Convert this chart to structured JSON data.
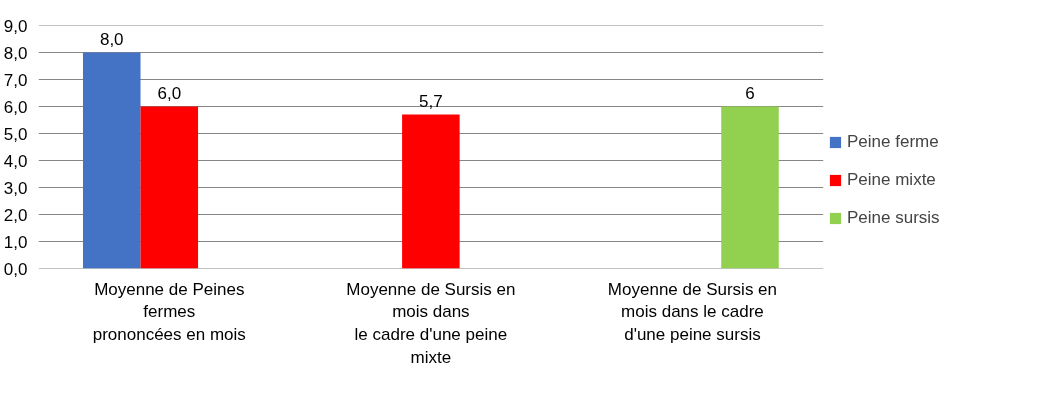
{
  "chart_data": {
    "type": "bar",
    "categories": [
      "Moyenne de Peines\nfermes\nprononcées en mois",
      "Moyenne de Sursis en\nmois dans\nle cadre d'une peine\nmixte",
      "Moyenne de Sursis en\nmois dans le cadre\nd'une peine sursis"
    ],
    "series": [
      {
        "name": "Peine ferme",
        "color": "#4472c4",
        "values": [
          8.0,
          null,
          null
        ],
        "value_labels": [
          "8,0",
          null,
          null
        ]
      },
      {
        "name": "Peine mixte",
        "color": "#ff0000",
        "values": [
          6.0,
          5.7,
          null
        ],
        "value_labels": [
          "6,0",
          "5,7",
          null
        ]
      },
      {
        "name": "Peine sursis",
        "color": "#92d050",
        "values": [
          null,
          null,
          6
        ],
        "value_labels": [
          null,
          null,
          "6"
        ]
      }
    ],
    "ylim": [
      0,
      9
    ],
    "yticks": [
      {
        "value": 0,
        "label": "0,0"
      },
      {
        "value": 1,
        "label": "1,0"
      },
      {
        "value": 2,
        "label": "2,0"
      },
      {
        "value": 3,
        "label": "3,0"
      },
      {
        "value": 4,
        "label": "4,0"
      },
      {
        "value": 5,
        "label": "5,0"
      },
      {
        "value": 6,
        "label": "6,0"
      },
      {
        "value": 7,
        "label": "7,0"
      },
      {
        "value": 8,
        "label": "8,0"
      },
      {
        "value": 9,
        "label": "9,0"
      }
    ],
    "grid": "y",
    "legend": "right"
  }
}
